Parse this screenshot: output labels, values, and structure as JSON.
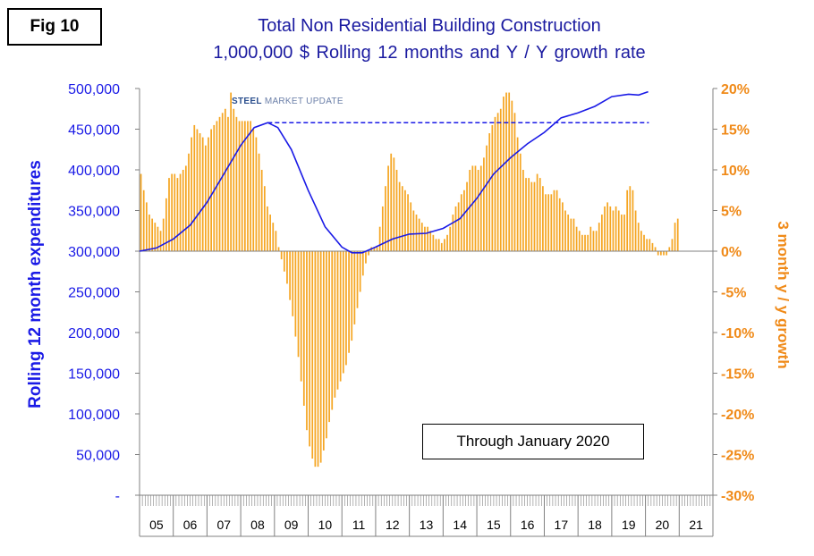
{
  "figure_label": "Fig 10",
  "logo": {
    "bold": "STEEL",
    "rest": " MARKET UPDATE"
  },
  "note": "Through January 2020",
  "colors": {
    "line": "#1a1ae6",
    "bars": "#f5a623",
    "left_axis": "#1a1ae6",
    "right_axis": "#f08a18",
    "title": "#1a1aa0"
  },
  "chart_data": {
    "type": "bar",
    "title": "Total Non Residential Building Construction",
    "subtitle": "1,000,000 $    Rolling 12 months and Y / Y growth rate",
    "ylabel_left": "Rolling 12 month expenditures",
    "ylabel_right": "3 month y / y growth",
    "xlabel": "",
    "x_range": [
      2005.0,
      2022.0
    ],
    "ylim_left": [
      0,
      500000
    ],
    "ylim_right": [
      -30,
      20
    ],
    "left_tick_labels": [
      "-",
      "50,000",
      "100,000",
      "150,000",
      "200,000",
      "250,000",
      "300,000",
      "350,000",
      "400,000",
      "450,000",
      "500,000"
    ],
    "right_tick_labels": [
      "-30%",
      "-25%",
      "-20%",
      "-15%",
      "-10%",
      "-5%",
      "0%",
      "5%",
      "10%",
      "15%",
      "20%"
    ],
    "year_labels": [
      "05",
      "06",
      "07",
      "08",
      "09",
      "10",
      "11",
      "12",
      "13",
      "14",
      "15",
      "16",
      "17",
      "18",
      "19",
      "20",
      "21"
    ],
    "series": [
      {
        "name": "Rolling 12 month expenditures",
        "axis": "left",
        "style": "line",
        "points": [
          [
            2005.0,
            300000
          ],
          [
            2005.5,
            304000
          ],
          [
            2006.0,
            315000
          ],
          [
            2006.5,
            332000
          ],
          [
            2007.0,
            360000
          ],
          [
            2007.5,
            395000
          ],
          [
            2008.0,
            430000
          ],
          [
            2008.4,
            452000
          ],
          [
            2008.8,
            458000
          ],
          [
            2009.1,
            452000
          ],
          [
            2009.5,
            425000
          ],
          [
            2010.0,
            375000
          ],
          [
            2010.5,
            330000
          ],
          [
            2011.0,
            305000
          ],
          [
            2011.3,
            298000
          ],
          [
            2011.6,
            298000
          ],
          [
            2012.0,
            305000
          ],
          [
            2012.5,
            315000
          ],
          [
            2013.0,
            321000
          ],
          [
            2013.5,
            322000
          ],
          [
            2014.0,
            328000
          ],
          [
            2014.5,
            340000
          ],
          [
            2015.0,
            365000
          ],
          [
            2015.5,
            395000
          ],
          [
            2016.0,
            415000
          ],
          [
            2016.5,
            432000
          ],
          [
            2017.0,
            446000
          ],
          [
            2017.5,
            464000
          ],
          [
            2018.0,
            470000
          ],
          [
            2018.5,
            478000
          ],
          [
            2019.0,
            490000
          ],
          [
            2019.5,
            493000
          ],
          [
            2019.8,
            492000
          ],
          [
            2020.08,
            496000
          ]
        ]
      },
      {
        "name": "Reference level",
        "axis": "left",
        "style": "dashed",
        "points": [
          [
            2008.8,
            458000
          ],
          [
            2020.1,
            458000
          ]
        ]
      },
      {
        "name": "3 month y / y growth",
        "axis": "right",
        "style": "bars",
        "start": 2005.0,
        "step_months": 1,
        "values": [
          9.5,
          7.5,
          6,
          4.5,
          4,
          3.5,
          3,
          2.5,
          4,
          6.5,
          9,
          9.5,
          9.5,
          9,
          9.5,
          10,
          10.5,
          12,
          14,
          15.5,
          15,
          14.5,
          14,
          13,
          14,
          15,
          15.5,
          16,
          16.5,
          17,
          17.5,
          16.5,
          19.5,
          17.5,
          16.5,
          16,
          16,
          16,
          16,
          16,
          15,
          14,
          12,
          10,
          8,
          5.5,
          4.5,
          3.5,
          2.5,
          0.5,
          -1,
          -2.5,
          -4,
          -6,
          -8,
          -10.5,
          -13,
          -16,
          -19,
          -22,
          -24,
          -25.5,
          -26.5,
          -26.5,
          -26,
          -24.5,
          -23,
          -21,
          -19.5,
          -18,
          -17,
          -16,
          -15,
          -14,
          -12.5,
          -11,
          -9,
          -7,
          -5,
          -3,
          -1.5,
          -0.5,
          0.5,
          0.5,
          0.5,
          3,
          5.5,
          8,
          10.5,
          12,
          11.5,
          10,
          8.5,
          8,
          7.5,
          7,
          6,
          5,
          4.5,
          4,
          3.5,
          3,
          3,
          2.5,
          2,
          1.5,
          1.5,
          1,
          1.5,
          2,
          3,
          4.5,
          5.5,
          6,
          7,
          7.5,
          8.5,
          10,
          10.5,
          10.5,
          10,
          10.5,
          11.5,
          13,
          14.5,
          15.5,
          16.5,
          17,
          17.5,
          19,
          19.5,
          19.5,
          18.5,
          17,
          14,
          12,
          10,
          9,
          9,
          8.5,
          8.5,
          9.5,
          9,
          8,
          7,
          7,
          7,
          7.5,
          7.5,
          6.5,
          6,
          5,
          4.5,
          4,
          4,
          3,
          2.5,
          2,
          2,
          2,
          3,
          2.5,
          2.5,
          3.5,
          4.5,
          5.5,
          6,
          5.5,
          5,
          5.5,
          5,
          4.5,
          4.5,
          7.5,
          8,
          7.5,
          5,
          3.5,
          2.5,
          2,
          1.5,
          1.5,
          1,
          0.5,
          -0.5,
          -0.5,
          -0.5,
          -0.5,
          0.5,
          1.5,
          3.5,
          4
        ]
      }
    ],
    "legend": "none",
    "grid": false
  }
}
